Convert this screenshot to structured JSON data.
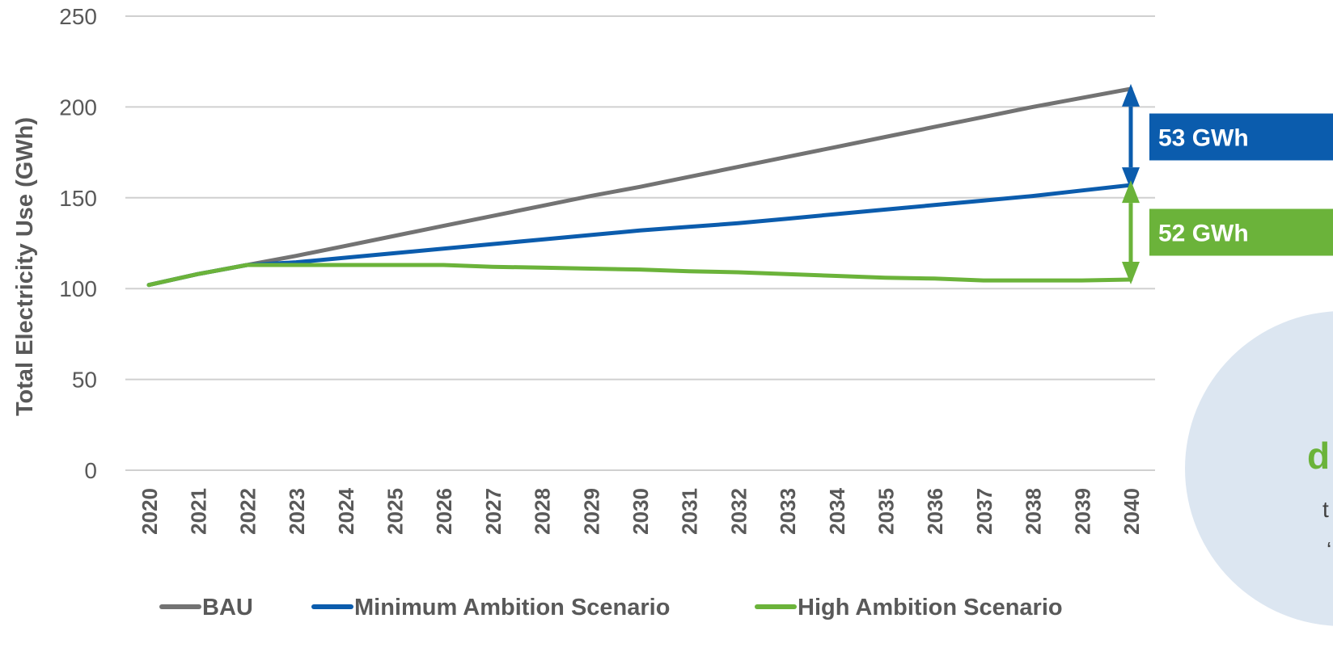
{
  "chart_data": {
    "type": "line",
    "title": "",
    "xlabel": "",
    "ylabel": "Total Electricity Use (GWh)",
    "ylim": [
      0,
      250
    ],
    "yticks": [
      0,
      50,
      100,
      150,
      200,
      250
    ],
    "grid": true,
    "legend_position": "bottom",
    "x": [
      "2020",
      "2021",
      "2022",
      "2023",
      "2024",
      "2025",
      "2026",
      "2027",
      "2028",
      "2029",
      "2030",
      "2031",
      "2032",
      "2033",
      "2034",
      "2035",
      "2036",
      "2037",
      "2038",
      "2039",
      "2040"
    ],
    "series": [
      {
        "name": "BAU",
        "color": "#737373",
        "values": [
          102,
          108,
          113,
          118,
          123.5,
          129,
          134.5,
          140,
          145.5,
          151,
          156,
          161.5,
          167,
          172.5,
          178,
          183.5,
          189,
          194.5,
          200,
          205,
          210
        ]
      },
      {
        "name": "Minimum Ambition Scenario",
        "color": "#0B5CAD",
        "values": [
          102,
          108,
          113,
          114.5,
          117,
          119.5,
          122,
          124.5,
          127,
          129.5,
          132,
          134,
          136,
          138.5,
          141,
          143.5,
          146,
          148.5,
          151,
          154,
          157
        ]
      },
      {
        "name": "High Ambition Scenario",
        "color": "#6BB33A",
        "values": [
          102,
          108,
          113,
          113,
          113,
          113,
          113,
          112,
          111.5,
          111,
          110.5,
          109.5,
          109,
          108,
          107,
          106,
          105.5,
          104.5,
          104.5,
          104.5,
          105
        ]
      }
    ],
    "annotations": [
      {
        "text": "53 GWh",
        "color": "#0B5CAD",
        "from": 210,
        "to": 157,
        "x": "2040"
      },
      {
        "text": "52 GWh",
        "color": "#6BB33A",
        "from": 157,
        "to": 105,
        "x": "2040"
      }
    ]
  },
  "circle_callout": {
    "big_text": "d",
    "line1": "t",
    "line2": "‘",
    "fill": "#DCE6F1",
    "accent": "#6BB33A"
  }
}
